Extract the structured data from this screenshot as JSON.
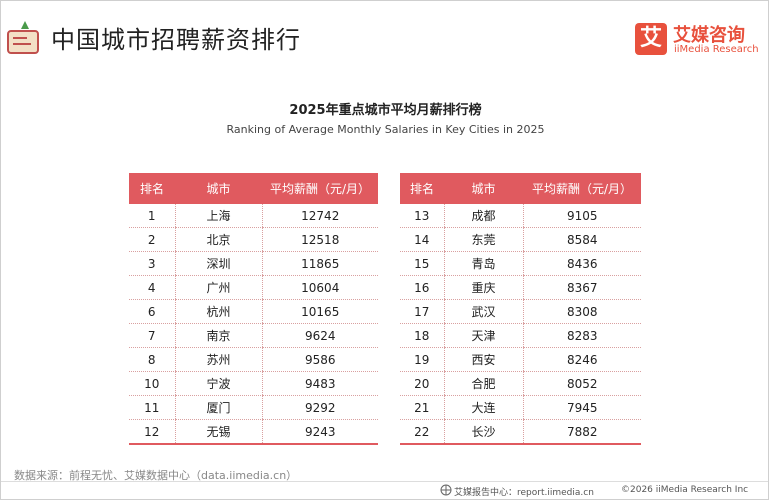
{
  "header": {
    "title": "中国城市招聘薪资排行"
  },
  "logo": {
    "icon": "艾",
    "name": "艾媒咨询",
    "en": "iiMedia Research"
  },
  "table_title": "2025年重点城市平均月薪排行榜",
  "table_subtitle": "Ranking of Average Monthly Salaries in Key Cities in 2025",
  "tables": [
    {
      "columns": [
        "排名",
        "城市",
        "平均薪酬（元/月）"
      ],
      "rows": [
        [
          1,
          "上海",
          12742
        ],
        [
          2,
          "北京",
          12518
        ],
        [
          3,
          "深圳",
          11865
        ],
        [
          4,
          "广州",
          10604
        ],
        [
          6,
          "杭州",
          10165
        ],
        [
          7,
          "南京",
          9624
        ],
        [
          8,
          "苏州",
          9586
        ],
        [
          10,
          "宁波",
          9483
        ],
        [
          11,
          "厦门",
          9292
        ],
        [
          12,
          "无锡",
          9243
        ]
      ]
    },
    {
      "columns": [
        "排名",
        "城市",
        "平均薪酬（元/月）"
      ],
      "rows": [
        [
          13,
          "成都",
          9105
        ],
        [
          14,
          "东莞",
          8584
        ],
        [
          15,
          "青岛",
          8436
        ],
        [
          16,
          "重庆",
          8367
        ],
        [
          17,
          "武汉",
          8308
        ],
        [
          18,
          "天津",
          8283
        ],
        [
          19,
          "西安",
          8246
        ],
        [
          20,
          "合肥",
          8052
        ],
        [
          21,
          "大连",
          7945
        ],
        [
          22,
          "长沙",
          7882
        ]
      ]
    }
  ],
  "source": "数据来源：前程无忧、艾媒数据中心（data.iimedia.cn）",
  "footer": {
    "left": "艾媒报告中心：report.iimedia.cn",
    "right": "©2026  iiMedia Research  Inc"
  }
}
